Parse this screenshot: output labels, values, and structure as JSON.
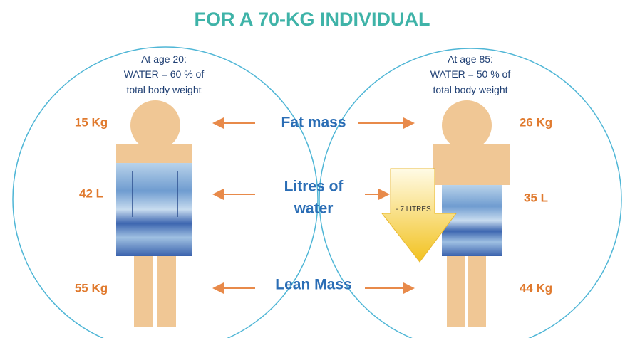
{
  "title": "FOR A 70-KG INDIVIDUAL",
  "left": {
    "caption": [
      "At age 20:",
      "WATER = 60 % of",
      "total body weight"
    ],
    "fat": "15 Kg",
    "water": "42 L",
    "lean": "55 Kg"
  },
  "right": {
    "caption": [
      "At age 85:",
      "WATER = 50 % of",
      "total body weight"
    ],
    "fat": "26 Kg",
    "water": "35 L",
    "lean": "44 Kg"
  },
  "center": {
    "fat": "Fat mass",
    "water": [
      "Litres of",
      "water"
    ],
    "lean": "Lean Mass"
  },
  "arrow_label": "- 7 LITRES"
}
